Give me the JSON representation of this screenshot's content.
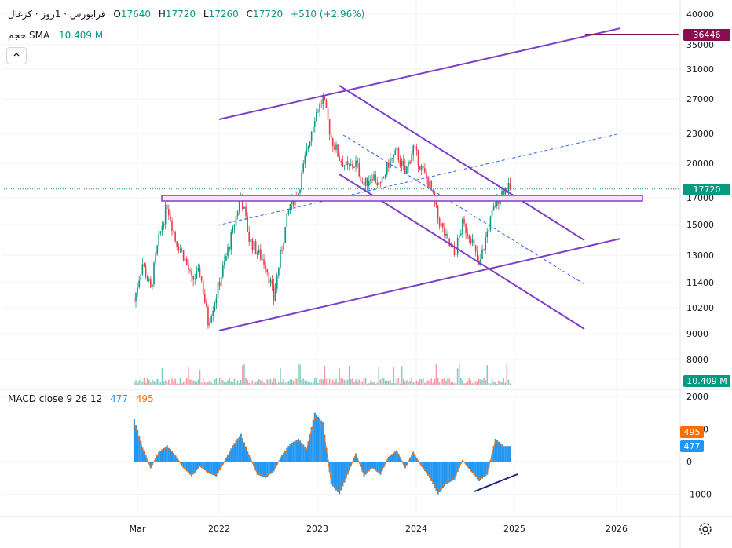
{
  "header": {
    "symbol": "فرابورس · 1روز · کزغال",
    "open_label": "O",
    "open": "17640",
    "high_label": "H",
    "high": "17720",
    "low_label": "L",
    "low": "17260",
    "close_label": "C",
    "close": "17720",
    "change": "+510 (+2.96%)"
  },
  "volume_legend": {
    "label": "حجم SMA",
    "value": "10.409 M"
  },
  "collapse_icon": "chevron-up-icon",
  "macd_legend": {
    "label": "MACD close 9 26 12",
    "macd": "477",
    "signal": "495"
  },
  "colors": {
    "up": "#089981",
    "down": "#f23645",
    "trendline": "#7e3fc8",
    "macd_hist": "#2196f3",
    "signal": "#ff6d00",
    "resistance": "#880e4f",
    "price_line": "#089981"
  },
  "badges": {
    "resistance": "36446",
    "price": "17720",
    "volume": "10.409 M",
    "macd_signal": "495",
    "macd_line": "477"
  },
  "chart_data": [
    {
      "type": "candlestick",
      "title": "فرابورس · 1روز · کزغال",
      "y_ticks": [
        "40000",
        "35000",
        "31000",
        "27000",
        "23000",
        "20000",
        "17000",
        "15000",
        "13000",
        "11400",
        "10200",
        "9000",
        "8000"
      ],
      "x_ticks": [
        "Mar",
        "2022",
        "2023",
        "2024",
        "2025",
        "2026"
      ],
      "y_scale": "log",
      "approx_close_series": [
        [
          "2021-03",
          10500
        ],
        [
          "2021-04",
          12500
        ],
        [
          "2021-05",
          11000
        ],
        [
          "2021-06",
          14000
        ],
        [
          "2021-07",
          16500
        ],
        [
          "2021-08",
          14000
        ],
        [
          "2021-09",
          13000
        ],
        [
          "2021-10",
          11500
        ],
        [
          "2021-11",
          12000
        ],
        [
          "2021-12",
          9500
        ],
        [
          "2022-01",
          10800
        ],
        [
          "2022-02",
          12500
        ],
        [
          "2022-03",
          14500
        ],
        [
          "2022-04",
          17200
        ],
        [
          "2022-05",
          14000
        ],
        [
          "2022-06",
          13200
        ],
        [
          "2022-07",
          12500
        ],
        [
          "2022-08",
          10600
        ],
        [
          "2022-09",
          13500
        ],
        [
          "2022-10",
          16500
        ],
        [
          "2022-11",
          17500
        ],
        [
          "2022-12",
          21000
        ],
        [
          "2023-01",
          25000
        ],
        [
          "2023-02",
          27000
        ],
        [
          "2023-03",
          22500
        ],
        [
          "2023-04",
          20500
        ],
        [
          "2023-05",
          19500
        ],
        [
          "2023-06",
          20000
        ],
        [
          "2023-07",
          18000
        ],
        [
          "2023-08",
          19000
        ],
        [
          "2023-09",
          17800
        ],
        [
          "2023-10",
          20000
        ],
        [
          "2023-11",
          21000
        ],
        [
          "2023-12",
          19000
        ],
        [
          "2024-01",
          21500
        ],
        [
          "2024-02",
          19500
        ],
        [
          "2024-03",
          18000
        ],
        [
          "2024-04",
          15500
        ],
        [
          "2024-05",
          14000
        ],
        [
          "2024-06",
          13000
        ],
        [
          "2024-07",
          15000
        ],
        [
          "2024-08",
          14200
        ],
        [
          "2024-09",
          12200
        ],
        [
          "2024-10",
          14500
        ],
        [
          "2024-11",
          16500
        ],
        [
          "2024-12",
          17720
        ]
      ],
      "annotations": [
        "36446",
        "17720"
      ]
    },
    {
      "type": "area",
      "title": "حجم SMA",
      "value": "10.409 M"
    },
    {
      "type": "bar",
      "title": "MACD close 9 26 12",
      "y_ticks": [
        "2000",
        "1000",
        "0",
        "-1000"
      ],
      "series": [
        {
          "name": "MACD",
          "last": 477
        },
        {
          "name": "Signal",
          "last": 495
        }
      ],
      "approx_hist": [
        [
          "2021-03",
          1300
        ],
        [
          "2021-04",
          450
        ],
        [
          "2021-05",
          -200
        ],
        [
          "2021-06",
          300
        ],
        [
          "2021-07",
          500
        ],
        [
          "2021-08",
          200
        ],
        [
          "2021-09",
          -200
        ],
        [
          "2021-10",
          -450
        ],
        [
          "2021-11",
          -150
        ],
        [
          "2021-12",
          -350
        ],
        [
          "2022-01",
          -450
        ],
        [
          "2022-02",
          0
        ],
        [
          "2022-03",
          500
        ],
        [
          "2022-04",
          850
        ],
        [
          "2022-05",
          200
        ],
        [
          "2022-06",
          -400
        ],
        [
          "2022-07",
          -500
        ],
        [
          "2022-08",
          -300
        ],
        [
          "2022-09",
          200
        ],
        [
          "2022-10",
          550
        ],
        [
          "2022-11",
          700
        ],
        [
          "2022-12",
          400
        ],
        [
          "2023-01",
          1500
        ],
        [
          "2023-02",
          1200
        ],
        [
          "2023-03",
          -700
        ],
        [
          "2023-04",
          -1000
        ],
        [
          "2023-05",
          -400
        ],
        [
          "2023-06",
          250
        ],
        [
          "2023-07",
          -450
        ],
        [
          "2023-08",
          -200
        ],
        [
          "2023-09",
          -400
        ],
        [
          "2023-10",
          150
        ],
        [
          "2023-11",
          350
        ],
        [
          "2023-12",
          -200
        ],
        [
          "2024-01",
          300
        ],
        [
          "2024-02",
          -150
        ],
        [
          "2024-03",
          -500
        ],
        [
          "2024-04",
          -1000
        ],
        [
          "2024-05",
          -700
        ],
        [
          "2024-06",
          -550
        ],
        [
          "2024-07",
          50
        ],
        [
          "2024-08",
          -300
        ],
        [
          "2024-09",
          -600
        ],
        [
          "2024-10",
          -400
        ],
        [
          "2024-11",
          700
        ],
        [
          "2024-12",
          477
        ]
      ]
    }
  ]
}
